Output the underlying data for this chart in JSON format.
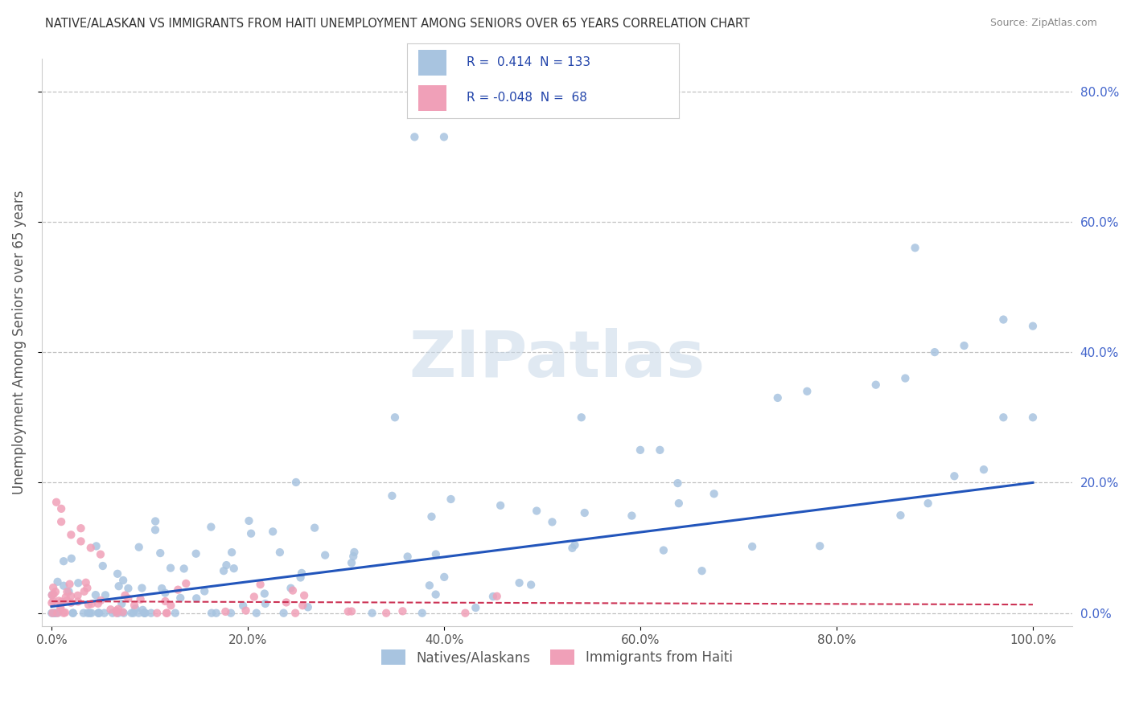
{
  "title": "NATIVE/ALASKAN VS IMMIGRANTS FROM HAITI UNEMPLOYMENT AMONG SENIORS OVER 65 YEARS CORRELATION CHART",
  "source": "Source: ZipAtlas.com",
  "ylabel": "Unemployment Among Seniors over 65 years",
  "legend_labels": [
    "Natives/Alaskans",
    "Immigrants from Haiti"
  ],
  "r_blue": 0.414,
  "n_blue": 133,
  "r_pink": -0.048,
  "n_pink": 68,
  "blue_color": "#a8c4e0",
  "pink_color": "#f0a0b8",
  "blue_line_color": "#2255bb",
  "pink_line_color": "#cc3355",
  "watermark": "ZIPatlas",
  "background_color": "#ffffff",
  "grid_color": "#bbbbbb",
  "title_color": "#333333",
  "infobox_border": "#cccccc",
  "infobox_text_color": "#2244aa",
  "legend_text_color": "#555555",
  "x_ticks": [
    0.0,
    0.2,
    0.4,
    0.6,
    0.8,
    1.0
  ],
  "y_ticks": [
    0.0,
    0.2,
    0.4,
    0.6,
    0.8
  ],
  "xlim": [
    -0.01,
    1.04
  ],
  "ylim": [
    -0.02,
    0.85
  ],
  "blue_trend": [
    0.01,
    0.2
  ],
  "pink_trend": [
    0.018,
    0.013
  ]
}
